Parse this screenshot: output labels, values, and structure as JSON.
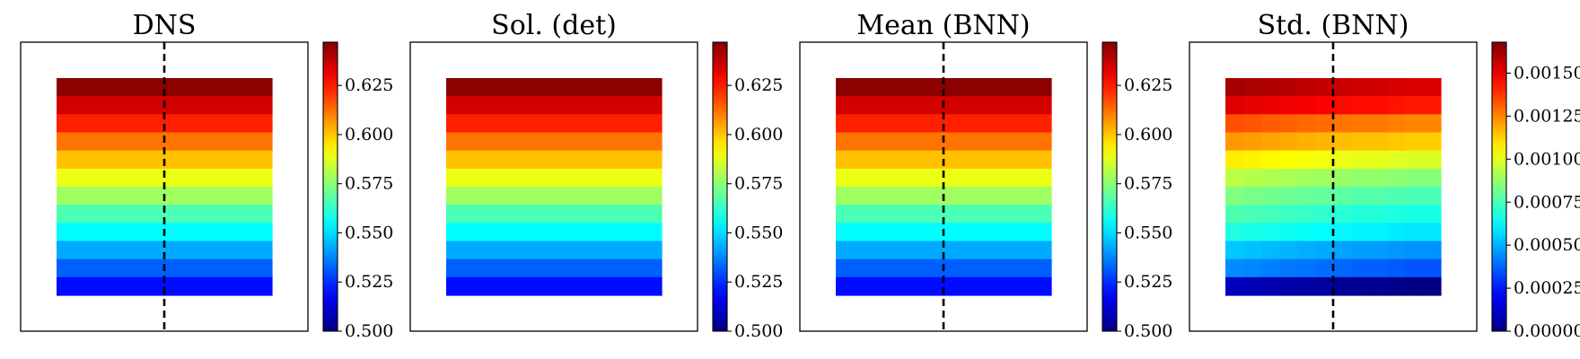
{
  "chart_data": [
    {
      "type": "heatmap",
      "title": "DNS",
      "rows": 12,
      "cols": 12,
      "row_values": [
        0.645,
        0.635,
        0.624,
        0.612,
        0.601,
        0.589,
        0.578,
        0.566,
        0.555,
        0.543,
        0.532,
        0.52
      ],
      "col_offsets": [
        0,
        0,
        0,
        0,
        0,
        0,
        0,
        0,
        0,
        0,
        0,
        0
      ],
      "colorbar": {
        "min": 0.5,
        "max": 0.647,
        "ticks": [
          0.5,
          0.525,
          0.55,
          0.575,
          0.6,
          0.625
        ],
        "tick_labels": [
          "0.500",
          "0.525",
          "0.550",
          "0.575",
          "0.600",
          "0.625"
        ]
      },
      "colormap": "jet",
      "dashed_vertical_line": true,
      "dashed_line_col": 5.5
    },
    {
      "type": "heatmap",
      "title": "Sol. (det)",
      "rows": 12,
      "cols": 12,
      "row_values": [
        0.645,
        0.635,
        0.624,
        0.612,
        0.601,
        0.589,
        0.578,
        0.566,
        0.555,
        0.543,
        0.532,
        0.52
      ],
      "col_offsets": [
        0,
        0,
        0,
        0,
        0,
        0,
        0,
        0,
        0,
        0,
        0,
        0
      ],
      "colorbar": {
        "min": 0.5,
        "max": 0.647,
        "ticks": [
          0.5,
          0.525,
          0.55,
          0.575,
          0.6,
          0.625
        ],
        "tick_labels": [
          "0.500",
          "0.525",
          "0.550",
          "0.575",
          "0.600",
          "0.625"
        ]
      },
      "colormap": "jet",
      "dashed_vertical_line": false
    },
    {
      "type": "heatmap",
      "title": "Mean (BNN)",
      "rows": 12,
      "cols": 12,
      "row_values": [
        0.645,
        0.635,
        0.624,
        0.612,
        0.601,
        0.589,
        0.578,
        0.566,
        0.555,
        0.543,
        0.532,
        0.52
      ],
      "col_offsets": [
        0,
        0,
        0,
        0,
        0,
        0,
        0,
        0,
        0,
        0,
        0,
        0
      ],
      "colorbar": {
        "min": 0.5,
        "max": 0.647,
        "ticks": [
          0.5,
          0.525,
          0.55,
          0.575,
          0.6,
          0.625
        ],
        "tick_labels": [
          "0.500",
          "0.525",
          "0.550",
          "0.575",
          "0.600",
          "0.625"
        ]
      },
      "colormap": "jet",
      "dashed_vertical_line": true,
      "dashed_line_col": 5.5
    },
    {
      "type": "heatmap",
      "title": "Std. (BNN)",
      "rows": 12,
      "cols": 12,
      "row_values": [
        0.00158,
        0.00148,
        0.0013,
        0.00118,
        0.00104,
        0.0009,
        0.0008,
        0.00072,
        0.00064,
        0.0005,
        0.0004,
        6e-05
      ],
      "col_offsets": [
        4e-05,
        3e-05,
        2e-05,
        1e-05,
        0.0,
        -1e-05,
        -2e-05,
        -3e-05,
        -3e-05,
        -4e-05,
        -5e-05,
        -5e-05
      ],
      "colorbar": {
        "min": 0.0,
        "max": 0.00168,
        "ticks": [
          0.0,
          0.00025,
          0.0005,
          0.00075,
          0.001,
          0.00125,
          0.0015
        ],
        "tick_labels": [
          "0.00000",
          "0.00025",
          "0.00050",
          "0.00075",
          "0.00100",
          "0.00125",
          "0.00150"
        ]
      },
      "colormap": "jet",
      "dashed_vertical_line": true,
      "dashed_line_col": 5.5
    }
  ]
}
